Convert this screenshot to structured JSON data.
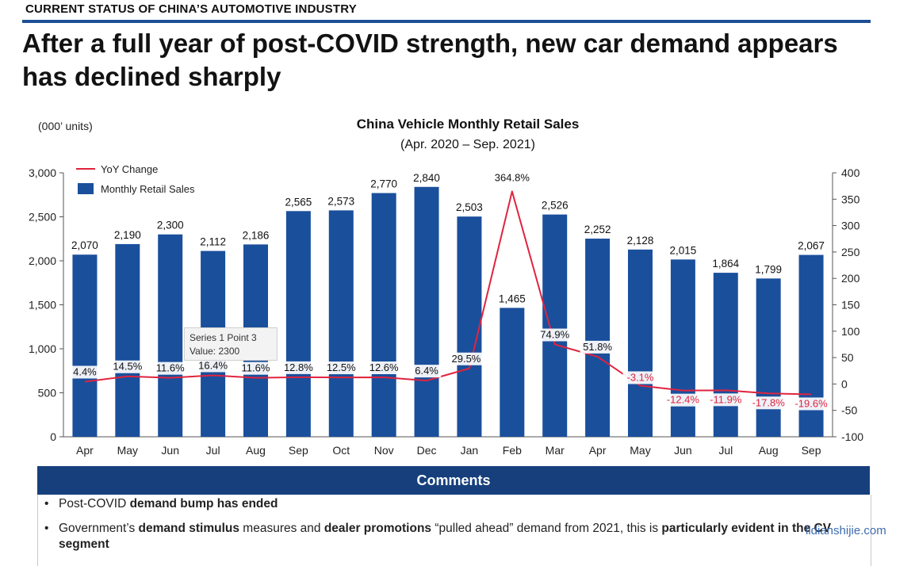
{
  "header": {
    "kicker": "CURRENT STATUS OF CHINA’S AUTOMOTIVE INDUSTRY",
    "headline": "After a full year of post-COVID strength, new car demand appears has declined sharply"
  },
  "chart_data": {
    "type": "bar",
    "title": "China Vehicle Monthly Retail Sales",
    "subtitle": "(Apr. 2020 – Sep. 2021)",
    "ylabel": "(000’ units)",
    "categories": [
      "Apr",
      "May",
      "Jun",
      "Jul",
      "Aug",
      "Sep",
      "Oct",
      "Nov",
      "Dec",
      "Jan",
      "Feb",
      "Mar",
      "Apr",
      "May",
      "Jun",
      "Jul",
      "Aug",
      "Sep"
    ],
    "series": [
      {
        "name": "Monthly Retail Sales",
        "kind": "bar",
        "axis": "left",
        "color": "#1a4f9c",
        "values": [
          2070,
          2190,
          2300,
          2112,
          2186,
          2565,
          2573,
          2770,
          2840,
          2503,
          1465,
          2526,
          2252,
          2128,
          2015,
          1864,
          1799,
          2067
        ],
        "labels": [
          "2,070",
          "2,190",
          "2,300",
          "2,112",
          "2,186",
          "2,565",
          "2,573",
          "2,770",
          "2,840",
          "2,503",
          "1,465",
          "2,526",
          "2,252",
          "2,128",
          "2,015",
          "1,864",
          "1,799",
          "2,067"
        ]
      },
      {
        "name": "YoY Change",
        "kind": "line",
        "axis": "right",
        "color": "#e0243f",
        "values": [
          4.4,
          14.5,
          11.6,
          16.4,
          11.6,
          12.8,
          12.5,
          12.6,
          6.4,
          29.5,
          364.8,
          74.9,
          51.8,
          -3.1,
          -12.4,
          -11.9,
          -17.8,
          -19.6
        ],
        "labels": [
          "4.4%",
          "14.5%",
          "11.6%",
          "16.4%",
          "11.6%",
          "12.8%",
          "12.5%",
          "12.6%",
          "6.4%",
          "29.5%",
          "364.8%",
          "74.9%",
          "51.8%",
          "-3.1%",
          "-12.4%",
          "-11.9%",
          "-17.8%",
          "-19.6%"
        ]
      }
    ],
    "ylim": [
      0,
      3000
    ],
    "yticks": [
      "0",
      "500",
      "1,000",
      "1,500",
      "2,000",
      "2,500",
      "3,000"
    ],
    "y2lim": [
      -100,
      400
    ],
    "y2ticks": [
      "-100",
      "-50",
      "0",
      "50",
      "100",
      "150",
      "200",
      "250",
      "300",
      "350",
      "400"
    ],
    "legend": [
      "YoY Change",
      "Monthly Retail Sales"
    ],
    "legend_position": "top-left",
    "tooltip": {
      "line1": "Series 1 Point 3",
      "line2": "Value: 2300"
    }
  },
  "comments": {
    "title": "Comments",
    "bullet1": {
      "pre": "Post-COVID ",
      "bold": "demand bump has ended"
    },
    "bullet2": {
      "t1": "Government’s ",
      "b1": "demand stimulus",
      "t2": " measures and ",
      "b2": "dealer promotions",
      "t3": " “pulled ahead” demand from 2021, this is ",
      "b3": "particularly evident in the CV segment"
    }
  },
  "watermark": "lidianshijie.com"
}
